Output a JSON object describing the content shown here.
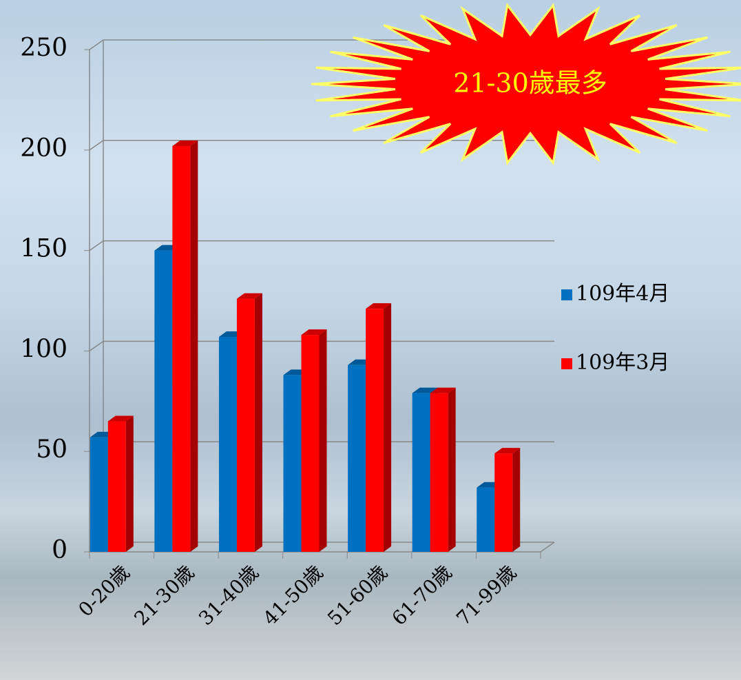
{
  "chart_data": {
    "type": "bar",
    "annotation": "21-30歲最多",
    "categories": [
      "0-20歲",
      "21-30歲",
      "31-40歲",
      "41-50歲",
      "51-60歲",
      "61-70歲",
      "71-99歲"
    ],
    "series": [
      {
        "name": "109年4月",
        "color": "#0070c0",
        "values": [
          57,
          150,
          107,
          88,
          93,
          79,
          32
        ]
      },
      {
        "name": "109年3月",
        "color": "#ff0000",
        "values": [
          65,
          202,
          126,
          108,
          121,
          79,
          49
        ]
      }
    ],
    "ylim": [
      0,
      250
    ],
    "yticks": [
      0,
      50,
      100,
      150,
      200,
      250
    ],
    "grid": true,
    "legend": "right"
  }
}
